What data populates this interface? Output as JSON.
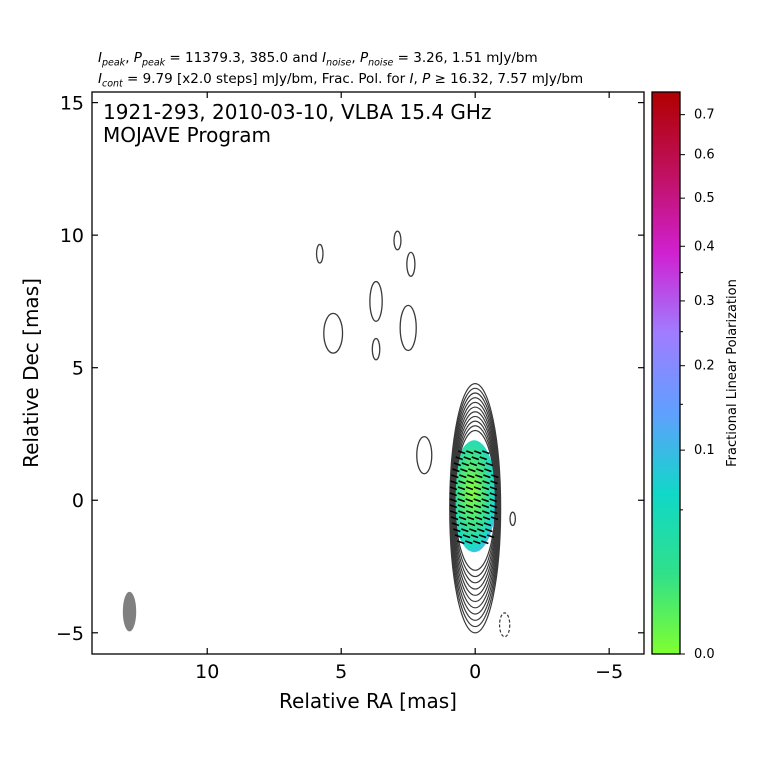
{
  "header": {
    "i_peak": "I",
    "i_peak_sub": "peak",
    "p_peak": "P",
    "p_peak_sub": "peak",
    "peak_values": " = 11379.3, 385.0 and ",
    "i_noise": "I",
    "i_noise_sub": "noise",
    "p_noise": "P",
    "p_noise_sub": "noise",
    "noise_values": " = 3.26, 1.51 mJy/bm",
    "i_cont": "I",
    "i_cont_sub": "cont",
    "cont_text": " = 9.79 [x2.0 steps] mJy/bm, Frac. Pol. for ",
    "frac_i": "I",
    "frac_p": "P",
    "frac_values": " ≥  16.32, 7.57 mJy/bm"
  },
  "chart_data": {
    "type": "contour",
    "title_line1": "1921-293, 2010-03-10, VLBA 15.4 GHz",
    "title_line2": "MOJAVE Program",
    "xlabel": "Relative RA [mas]",
    "ylabel": "Relative Dec [mas]",
    "xlim": [
      14.3,
      -6.3
    ],
    "ylim": [
      -5.8,
      15.4
    ],
    "x_ticks": [
      10,
      5,
      0,
      -5
    ],
    "x_tick_labels": [
      "10",
      "5",
      "0",
      "−5"
    ],
    "y_ticks": [
      15,
      10,
      5,
      0,
      -5
    ],
    "y_tick_labels": [
      "15",
      "10",
      "5",
      "0",
      "−5"
    ],
    "contour_levels_mJy": [
      9.79,
      19.58,
      39.16,
      78.32,
      156.64,
      313.28,
      626.56,
      1253.12,
      2506.24,
      5012.48,
      10024.96
    ],
    "core": {
      "x": 0.0,
      "y": 0.0,
      "peak_mJy": 11379.3
    },
    "faint_components": [
      {
        "x": 5.8,
        "y": 9.3
      },
      {
        "x": 2.9,
        "y": 9.8
      },
      {
        "x": 2.4,
        "y": 8.9
      },
      {
        "x": 3.7,
        "y": 7.5
      },
      {
        "x": 2.5,
        "y": 6.5
      },
      {
        "x": 5.3,
        "y": 6.3
      },
      {
        "x": 3.7,
        "y": 5.7
      },
      {
        "x": 1.9,
        "y": 1.7
      },
      {
        "x": -1.4,
        "y": -0.7
      }
    ],
    "negative_contour": {
      "x": -1.1,
      "y": -4.7
    },
    "beam": {
      "x": 12.9,
      "y": -4.2,
      "major_mas": 1.5,
      "minor_mas": 0.5,
      "pa_deg": 0
    },
    "colorbar": {
      "label": "Fractional Linear Polarization",
      "ticks": [
        0.0,
        0.1,
        0.2,
        0.3,
        0.4,
        0.5,
        0.6,
        0.7
      ],
      "tick_labels": [
        "0.0",
        "0.1",
        "0.2",
        "0.3",
        "0.4",
        "0.5",
        "0.6",
        "0.7"
      ],
      "range": [
        0,
        0.76
      ],
      "scale": "sqrt",
      "colors": [
        "#80ff30",
        "#30e08a",
        "#10d8c8",
        "#5fa0ff",
        "#a07cff",
        "#d020d0",
        "#c0105e",
        "#b00000"
      ]
    },
    "polarization_region": {
      "x": 0.0,
      "y": 0.0,
      "frac_pol_min": 0.03,
      "frac_pol_max": 0.2
    },
    "colors": {
      "contour": "#3a3a3a",
      "beam": "#808080",
      "evpa": "#000000"
    }
  }
}
